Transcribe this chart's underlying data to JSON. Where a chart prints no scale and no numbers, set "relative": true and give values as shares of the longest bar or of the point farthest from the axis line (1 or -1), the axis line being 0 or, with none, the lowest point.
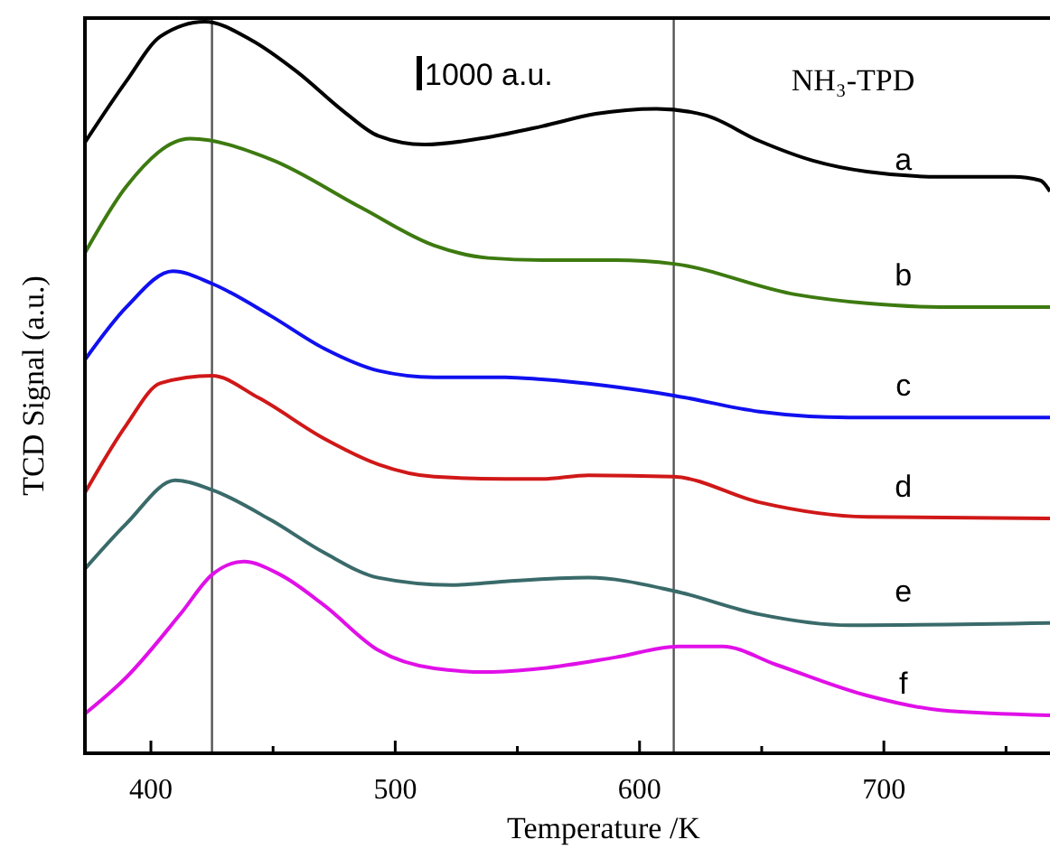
{
  "chart_data": {
    "type": "line",
    "relative": true,
    "xlabel": "Temperature /K",
    "ylabel": "TCD Signal (a.u.)",
    "xlim": [
      373,
      768
    ],
    "xticks": [
      400,
      {
        "value": 450,
        "label": null
      },
      500,
      {
        "value": 550,
        "label": null
      },
      600,
      {
        "value": 650,
        "label": null
      },
      700,
      {
        "value": 750,
        "label": null
      }
    ],
    "line_style": "solid",
    "marker": "none",
    "annotations": [
      "1000 a.u.",
      "NH₃-TPD"
    ],
    "ref_lines": [
      {
        "axis": "x",
        "value": 425,
        "color": "#555555"
      },
      {
        "axis": "x",
        "value": 614,
        "color": "#555555"
      }
    ],
    "series": [
      {
        "name": "a",
        "color": "#000000",
        "x": [
          373,
          390,
          404,
          422,
          441,
          460,
          479,
          493,
          512,
          538,
          560,
          582,
          607,
          627,
          649,
          671,
          693,
          723,
          753,
          764,
          768
        ],
        "values": [
          0.835,
          0.919,
          0.98,
          1.0,
          0.975,
          0.931,
          0.877,
          0.844,
          0.832,
          0.842,
          0.857,
          0.874,
          0.881,
          0.872,
          0.837,
          0.81,
          0.795,
          0.788,
          0.788,
          0.783,
          0.768
        ]
      },
      {
        "name": "b",
        "color": "#3d7a10",
        "x": [
          373,
          390,
          416,
          449,
          486,
          516,
          538,
          560,
          590,
          614,
          664,
          693,
          723,
          768
        ],
        "values": [
          0.684,
          0.775,
          0.84,
          0.812,
          0.746,
          0.694,
          0.677,
          0.674,
          0.674,
          0.669,
          0.627,
          0.615,
          0.61,
          0.61
        ]
      },
      {
        "name": "c",
        "color": "#1010f0",
        "x": [
          373,
          390,
          409,
          425,
          449,
          471,
          493,
          516,
          545,
          560,
          614,
          649,
          686,
          768
        ],
        "values": [
          0.538,
          0.61,
          0.659,
          0.642,
          0.598,
          0.553,
          0.523,
          0.514,
          0.514,
          0.511,
          0.489,
          0.467,
          0.459,
          0.459
        ]
      },
      {
        "name": "d",
        "color": "#d01818",
        "x": [
          373,
          390,
          404,
          425,
          444,
          471,
          493,
          516,
          545,
          560,
          579,
          614,
          649,
          693,
          768
        ],
        "values": [
          0.356,
          0.449,
          0.506,
          0.516,
          0.486,
          0.43,
          0.395,
          0.378,
          0.375,
          0.375,
          0.38,
          0.378,
          0.343,
          0.323,
          0.321
        ]
      },
      {
        "name": "e",
        "color": "#3a6a6a",
        "x": [
          373,
          390,
          410,
          425,
          449,
          471,
          493,
          523,
          545,
          579,
          614,
          649,
          686,
          768
        ],
        "values": [
          0.252,
          0.314,
          0.373,
          0.36,
          0.319,
          0.274,
          0.24,
          0.23,
          0.235,
          0.24,
          0.222,
          0.19,
          0.175,
          0.178
        ]
      },
      {
        "name": "f",
        "color": "#e010e8",
        "x": [
          373,
          390,
          412,
          425,
          438,
          453,
          471,
          493,
          516,
          538,
          560,
          590,
          616,
          634,
          656,
          693,
          723,
          768
        ],
        "values": [
          0.054,
          0.104,
          0.19,
          0.244,
          0.262,
          0.244,
          0.202,
          0.141,
          0.116,
          0.111,
          0.116,
          0.131,
          0.146,
          0.146,
          0.121,
          0.079,
          0.059,
          0.052
        ]
      }
    ]
  }
}
